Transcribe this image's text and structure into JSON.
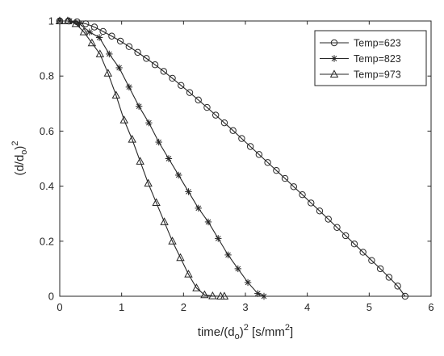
{
  "chart_data": {
    "type": "line",
    "title": "",
    "xlabel": "time/(d_o)^2 [s/mm^2]",
    "xlabel_parts": {
      "main": "time/(d",
      "sub": "o",
      "mid": ")",
      "sup": "2",
      "tail": " [s/mm",
      "tail_sup": "2",
      "end": "]"
    },
    "ylabel": "(d/d_o)^2",
    "ylabel_parts": {
      "main": "(d/d",
      "sub": "o",
      "mid": ")",
      "sup": "2"
    },
    "xlim": [
      0,
      6
    ],
    "ylim": [
      0,
      1
    ],
    "xticks": [
      "0",
      "1",
      "2",
      "3",
      "4",
      "5",
      "6"
    ],
    "yticks": [
      "0",
      "0.2",
      "0.4",
      "0.6",
      "0.8",
      "1"
    ],
    "grid": false,
    "legend_position": "top-right",
    "series": [
      {
        "name": "Temp=623",
        "marker": "circle",
        "x": [
          0,
          0.14,
          0.28,
          0.42,
          0.56,
          0.7,
          0.84,
          0.98,
          1.12,
          1.26,
          1.4,
          1.54,
          1.68,
          1.82,
          1.96,
          2.1,
          2.24,
          2.38,
          2.52,
          2.66,
          2.8,
          2.94,
          3.08,
          3.22,
          3.36,
          3.5,
          3.64,
          3.78,
          3.92,
          4.06,
          4.2,
          4.34,
          4.48,
          4.62,
          4.76,
          4.9,
          5.04,
          5.18,
          5.32,
          5.46,
          5.58
        ],
        "y": [
          1.0,
          1.0,
          0.997,
          0.99,
          0.978,
          0.962,
          0.945,
          0.927,
          0.907,
          0.886,
          0.864,
          0.841,
          0.817,
          0.792,
          0.766,
          0.74,
          0.713,
          0.686,
          0.658,
          0.63,
          0.602,
          0.573,
          0.544,
          0.515,
          0.486,
          0.457,
          0.428,
          0.398,
          0.369,
          0.339,
          0.31,
          0.28,
          0.25,
          0.22,
          0.19,
          0.16,
          0.13,
          0.1,
          0.069,
          0.037,
          0.0
        ]
      },
      {
        "name": "Temp=823",
        "marker": "star",
        "x": [
          0,
          0.16,
          0.32,
          0.48,
          0.64,
          0.8,
          0.96,
          1.12,
          1.28,
          1.44,
          1.6,
          1.76,
          1.92,
          2.08,
          2.24,
          2.4,
          2.56,
          2.72,
          2.88,
          3.04,
          3.2,
          3.3
        ],
        "y": [
          1.0,
          1.0,
          0.99,
          0.96,
          0.94,
          0.88,
          0.83,
          0.76,
          0.69,
          0.63,
          0.56,
          0.5,
          0.44,
          0.38,
          0.32,
          0.27,
          0.21,
          0.15,
          0.1,
          0.05,
          0.01,
          0.0
        ]
      },
      {
        "name": "Temp=973",
        "marker": "triangle",
        "x": [
          0,
          0.13,
          0.26,
          0.39,
          0.52,
          0.65,
          0.78,
          0.91,
          1.04,
          1.17,
          1.3,
          1.43,
          1.56,
          1.69,
          1.82,
          1.95,
          2.08,
          2.21,
          2.34,
          2.47,
          2.6,
          2.66
        ],
        "y": [
          1.0,
          1.0,
          0.99,
          0.96,
          0.92,
          0.88,
          0.81,
          0.73,
          0.64,
          0.57,
          0.49,
          0.41,
          0.34,
          0.27,
          0.2,
          0.14,
          0.08,
          0.03,
          0.005,
          0.001,
          0.0,
          0.0
        ]
      }
    ]
  }
}
